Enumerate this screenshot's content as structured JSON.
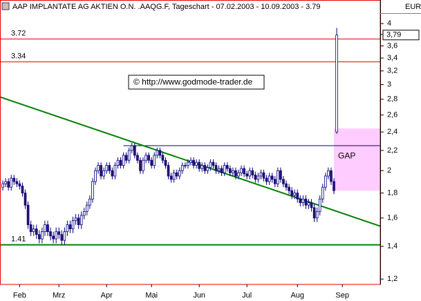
{
  "chart_data": {
    "type": "candlestick",
    "title": "AAP IMPLANTATE AG AKTIEN O.N. .AAQG.F, Tageschart - 07.02.2003 - 10.09.2003 - 3.79",
    "currency": "EUR",
    "copyright": "© http://www.godmode-trader.de",
    "log_scale": true,
    "up_color": "#ffffff",
    "down_color": "#3a1060",
    "edge_color": "#000080",
    "xlim": [
      -1,
      134.5
    ],
    "xticks": [
      {
        "value": 6,
        "label": "Feb"
      },
      {
        "value": 20,
        "label": "Mrz"
      },
      {
        "value": 37,
        "label": "Apr"
      },
      {
        "value": 53,
        "label": "Mai"
      },
      {
        "value": 70,
        "label": "Jun"
      },
      {
        "value": 87,
        "label": "Jul"
      },
      {
        "value": 105,
        "label": "Aug"
      },
      {
        "value": 121,
        "label": "Sep"
      }
    ],
    "ylim": [
      1.17,
      4.47
    ],
    "yticks": [
      {
        "value": 1.2,
        "label": "1,2"
      },
      {
        "value": 1.4,
        "label": "1,4"
      },
      {
        "value": 1.6,
        "label": "1,6"
      },
      {
        "value": 1.8,
        "label": "1,8"
      },
      2,
      {
        "value": 2.2,
        "label": "2,2"
      },
      {
        "value": 2.4,
        "label": "2,4"
      },
      {
        "value": 2.6,
        "label": "2,6"
      },
      {
        "value": 2.8,
        "label": "2,8"
      },
      3,
      {
        "value": 3.2,
        "label": "3,2"
      },
      {
        "value": 3.4,
        "label": "3,4"
      },
      {
        "value": 3.6,
        "label": "3,6"
      },
      {
        "value": 3.8,
        "label": "3,8"
      },
      4
    ],
    "last_price": {
      "value": 3.79,
      "label": "3,79"
    },
    "levels": [
      {
        "value": 3.72,
        "label": "3.72",
        "color": "#e00000"
      },
      {
        "value": 3.34,
        "label": "3.34",
        "color": "#e00000"
      },
      {
        "value": 1.41,
        "label": "1.41",
        "color": "#008000"
      }
    ],
    "resistance": {
      "value": 2.25,
      "start": 43,
      "color": "#000080"
    },
    "trendline": {
      "from": [
        -1,
        2.83
      ],
      "to": [
        134.5,
        1.54
      ],
      "color": "#008000"
    },
    "gap": {
      "label": "GAP",
      "top": 2.44,
      "bottom": 1.82,
      "start": 118,
      "color": "#ffccff"
    },
    "ohlc": [
      [
        1.85,
        1.91,
        1.82,
        1.88
      ],
      [
        1.88,
        1.93,
        1.85,
        1.9
      ],
      [
        1.9,
        1.93,
        1.82,
        1.85
      ],
      [
        1.85,
        1.96,
        1.82,
        1.93
      ],
      [
        1.93,
        1.96,
        1.87,
        1.9
      ],
      [
        1.9,
        1.93,
        1.85,
        1.88
      ],
      [
        1.88,
        1.91,
        1.83,
        1.86
      ],
      [
        1.86,
        1.89,
        1.77,
        1.8
      ],
      [
        1.8,
        1.83,
        1.67,
        1.7
      ],
      [
        1.7,
        1.73,
        1.52,
        1.55
      ],
      [
        1.55,
        1.58,
        1.47,
        1.5
      ],
      [
        1.5,
        1.55,
        1.47,
        1.52
      ],
      [
        1.52,
        1.55,
        1.45,
        1.48
      ],
      [
        1.48,
        1.51,
        1.42,
        1.45
      ],
      [
        1.45,
        1.53,
        1.42,
        1.5
      ],
      [
        1.5,
        1.58,
        1.47,
        1.55
      ],
      [
        1.55,
        1.58,
        1.47,
        1.5
      ],
      [
        1.5,
        1.53,
        1.44,
        1.47
      ],
      [
        1.47,
        1.5,
        1.42,
        1.45
      ],
      [
        1.45,
        1.53,
        1.42,
        1.5
      ],
      [
        1.5,
        1.53,
        1.45,
        1.48
      ],
      [
        1.48,
        1.51,
        1.41,
        1.44
      ],
      [
        1.44,
        1.53,
        1.41,
        1.5
      ],
      [
        1.5,
        1.58,
        1.47,
        1.55
      ],
      [
        1.55,
        1.58,
        1.49,
        1.52
      ],
      [
        1.52,
        1.61,
        1.49,
        1.58
      ],
      [
        1.58,
        1.63,
        1.55,
        1.6
      ],
      [
        1.6,
        1.63,
        1.52,
        1.55
      ],
      [
        1.55,
        1.65,
        1.52,
        1.62
      ],
      [
        1.62,
        1.68,
        1.59,
        1.65
      ],
      [
        1.65,
        1.73,
        1.62,
        1.7
      ],
      [
        1.7,
        1.78,
        1.67,
        1.75
      ],
      [
        1.75,
        1.93,
        1.72,
        1.9
      ],
      [
        1.9,
        2.03,
        1.87,
        2.0
      ],
      [
        2.0,
        2.08,
        1.97,
        2.05
      ],
      [
        2.05,
        2.08,
        1.92,
        1.95
      ],
      [
        1.95,
        2.03,
        1.92,
        2.0
      ],
      [
        2.0,
        2.08,
        1.97,
        2.05
      ],
      [
        2.05,
        2.08,
        1.97,
        2.0
      ],
      [
        2.0,
        2.03,
        1.92,
        1.95
      ],
      [
        1.95,
        2.08,
        1.92,
        2.05
      ],
      [
        2.05,
        2.13,
        2.02,
        2.1
      ],
      [
        2.1,
        2.13,
        2.02,
        2.05
      ],
      [
        2.05,
        2.18,
        2.02,
        2.15
      ],
      [
        2.15,
        2.18,
        2.07,
        2.1
      ],
      [
        2.1,
        2.23,
        2.07,
        2.2
      ],
      [
        2.2,
        2.28,
        2.17,
        2.25
      ],
      [
        2.25,
        2.28,
        2.12,
        2.15
      ],
      [
        2.15,
        2.18,
        2.07,
        2.1
      ],
      [
        2.1,
        2.13,
        1.97,
        2.0
      ],
      [
        2.0,
        2.13,
        1.97,
        2.1
      ],
      [
        2.1,
        2.18,
        2.07,
        2.15
      ],
      [
        2.15,
        2.18,
        2.07,
        2.1
      ],
      [
        2.1,
        2.13,
        2.02,
        2.05
      ],
      [
        2.05,
        2.18,
        2.02,
        2.15
      ],
      [
        2.15,
        2.23,
        2.12,
        2.2
      ],
      [
        2.2,
        2.23,
        2.12,
        2.15
      ],
      [
        2.15,
        2.18,
        2.07,
        2.1
      ],
      [
        2.1,
        2.13,
        2.02,
        2.05
      ],
      [
        2.05,
        2.08,
        1.92,
        1.95
      ],
      [
        1.95,
        1.98,
        1.89,
        1.92
      ],
      [
        1.92,
        2.01,
        1.89,
        1.98
      ],
      [
        1.98,
        2.01,
        1.92,
        1.95
      ],
      [
        1.95,
        2.03,
        1.92,
        2.0
      ],
      [
        2.0,
        2.08,
        1.97,
        2.05
      ],
      [
        2.05,
        2.08,
        2.02,
        2.05
      ],
      [
        2.05,
        2.11,
        2.02,
        2.08
      ],
      [
        2.08,
        2.13,
        2.05,
        2.1
      ],
      [
        2.1,
        2.13,
        2.02,
        2.05
      ],
      [
        2.05,
        2.11,
        2.02,
        2.08
      ],
      [
        2.08,
        2.11,
        1.99,
        2.02
      ],
      [
        2.02,
        2.08,
        1.99,
        2.05
      ],
      [
        2.05,
        2.08,
        1.97,
        2.0
      ],
      [
        2.0,
        2.06,
        1.97,
        2.03
      ],
      [
        2.03,
        2.11,
        2.0,
        2.08
      ],
      [
        2.08,
        2.11,
        2.02,
        2.05
      ],
      [
        2.05,
        2.08,
        1.97,
        2.0
      ],
      [
        2.0,
        2.05,
        1.97,
        2.02
      ],
      [
        2.02,
        2.05,
        1.95,
        1.98
      ],
      [
        1.98,
        2.08,
        1.95,
        2.05
      ],
      [
        2.05,
        2.08,
        1.99,
        2.02
      ],
      [
        2.02,
        2.05,
        1.95,
        1.98
      ],
      [
        1.98,
        2.03,
        1.95,
        2.0
      ],
      [
        2.0,
        2.03,
        1.92,
        1.95
      ],
      [
        1.95,
        2.01,
        1.92,
        1.98
      ],
      [
        1.98,
        2.05,
        1.95,
        2.02
      ],
      [
        2.02,
        2.05,
        1.94,
        1.97
      ],
      [
        1.97,
        2.0,
        1.92,
        1.95
      ],
      [
        1.95,
        2.03,
        1.92,
        2.0
      ],
      [
        2.0,
        2.03,
        1.93,
        1.96
      ],
      [
        1.96,
        1.99,
        1.89,
        1.92
      ],
      [
        1.92,
        1.98,
        1.89,
        1.95
      ],
      [
        1.95,
        2.01,
        1.92,
        1.98
      ],
      [
        1.98,
        2.01,
        1.9,
        1.93
      ],
      [
        1.93,
        1.96,
        1.87,
        1.9
      ],
      [
        1.9,
        1.98,
        1.87,
        1.95
      ],
      [
        1.95,
        1.98,
        1.89,
        1.92
      ],
      [
        1.92,
        1.95,
        1.85,
        1.88
      ],
      [
        1.88,
        2.03,
        1.85,
        2.0
      ],
      [
        2.0,
        2.03,
        1.89,
        1.92
      ],
      [
        1.92,
        1.95,
        1.85,
        1.88
      ],
      [
        1.88,
        1.91,
        1.82,
        1.85
      ],
      [
        1.85,
        1.88,
        1.79,
        1.82
      ],
      [
        1.82,
        1.85,
        1.75,
        1.78
      ],
      [
        1.78,
        1.83,
        1.75,
        1.8
      ],
      [
        1.8,
        1.83,
        1.72,
        1.75
      ],
      [
        1.75,
        1.78,
        1.69,
        1.72
      ],
      [
        1.72,
        1.78,
        1.69,
        1.75
      ],
      [
        1.75,
        1.78,
        1.67,
        1.7
      ],
      [
        1.7,
        1.75,
        1.67,
        1.72
      ],
      [
        1.72,
        1.75,
        1.65,
        1.68
      ],
      [
        1.68,
        1.71,
        1.57,
        1.6
      ],
      [
        1.6,
        1.68,
        1.57,
        1.65
      ],
      [
        1.65,
        1.78,
        1.62,
        1.75
      ],
      [
        1.75,
        1.88,
        1.72,
        1.85
      ],
      [
        1.85,
        1.98,
        1.82,
        1.95
      ],
      [
        1.95,
        2.03,
        1.92,
        2.0
      ],
      [
        2.0,
        2.03,
        1.87,
        1.9
      ],
      [
        1.9,
        1.93,
        1.79,
        1.82
      ],
      [
        2.4,
        3.92,
        2.38,
        3.79
      ]
    ]
  }
}
